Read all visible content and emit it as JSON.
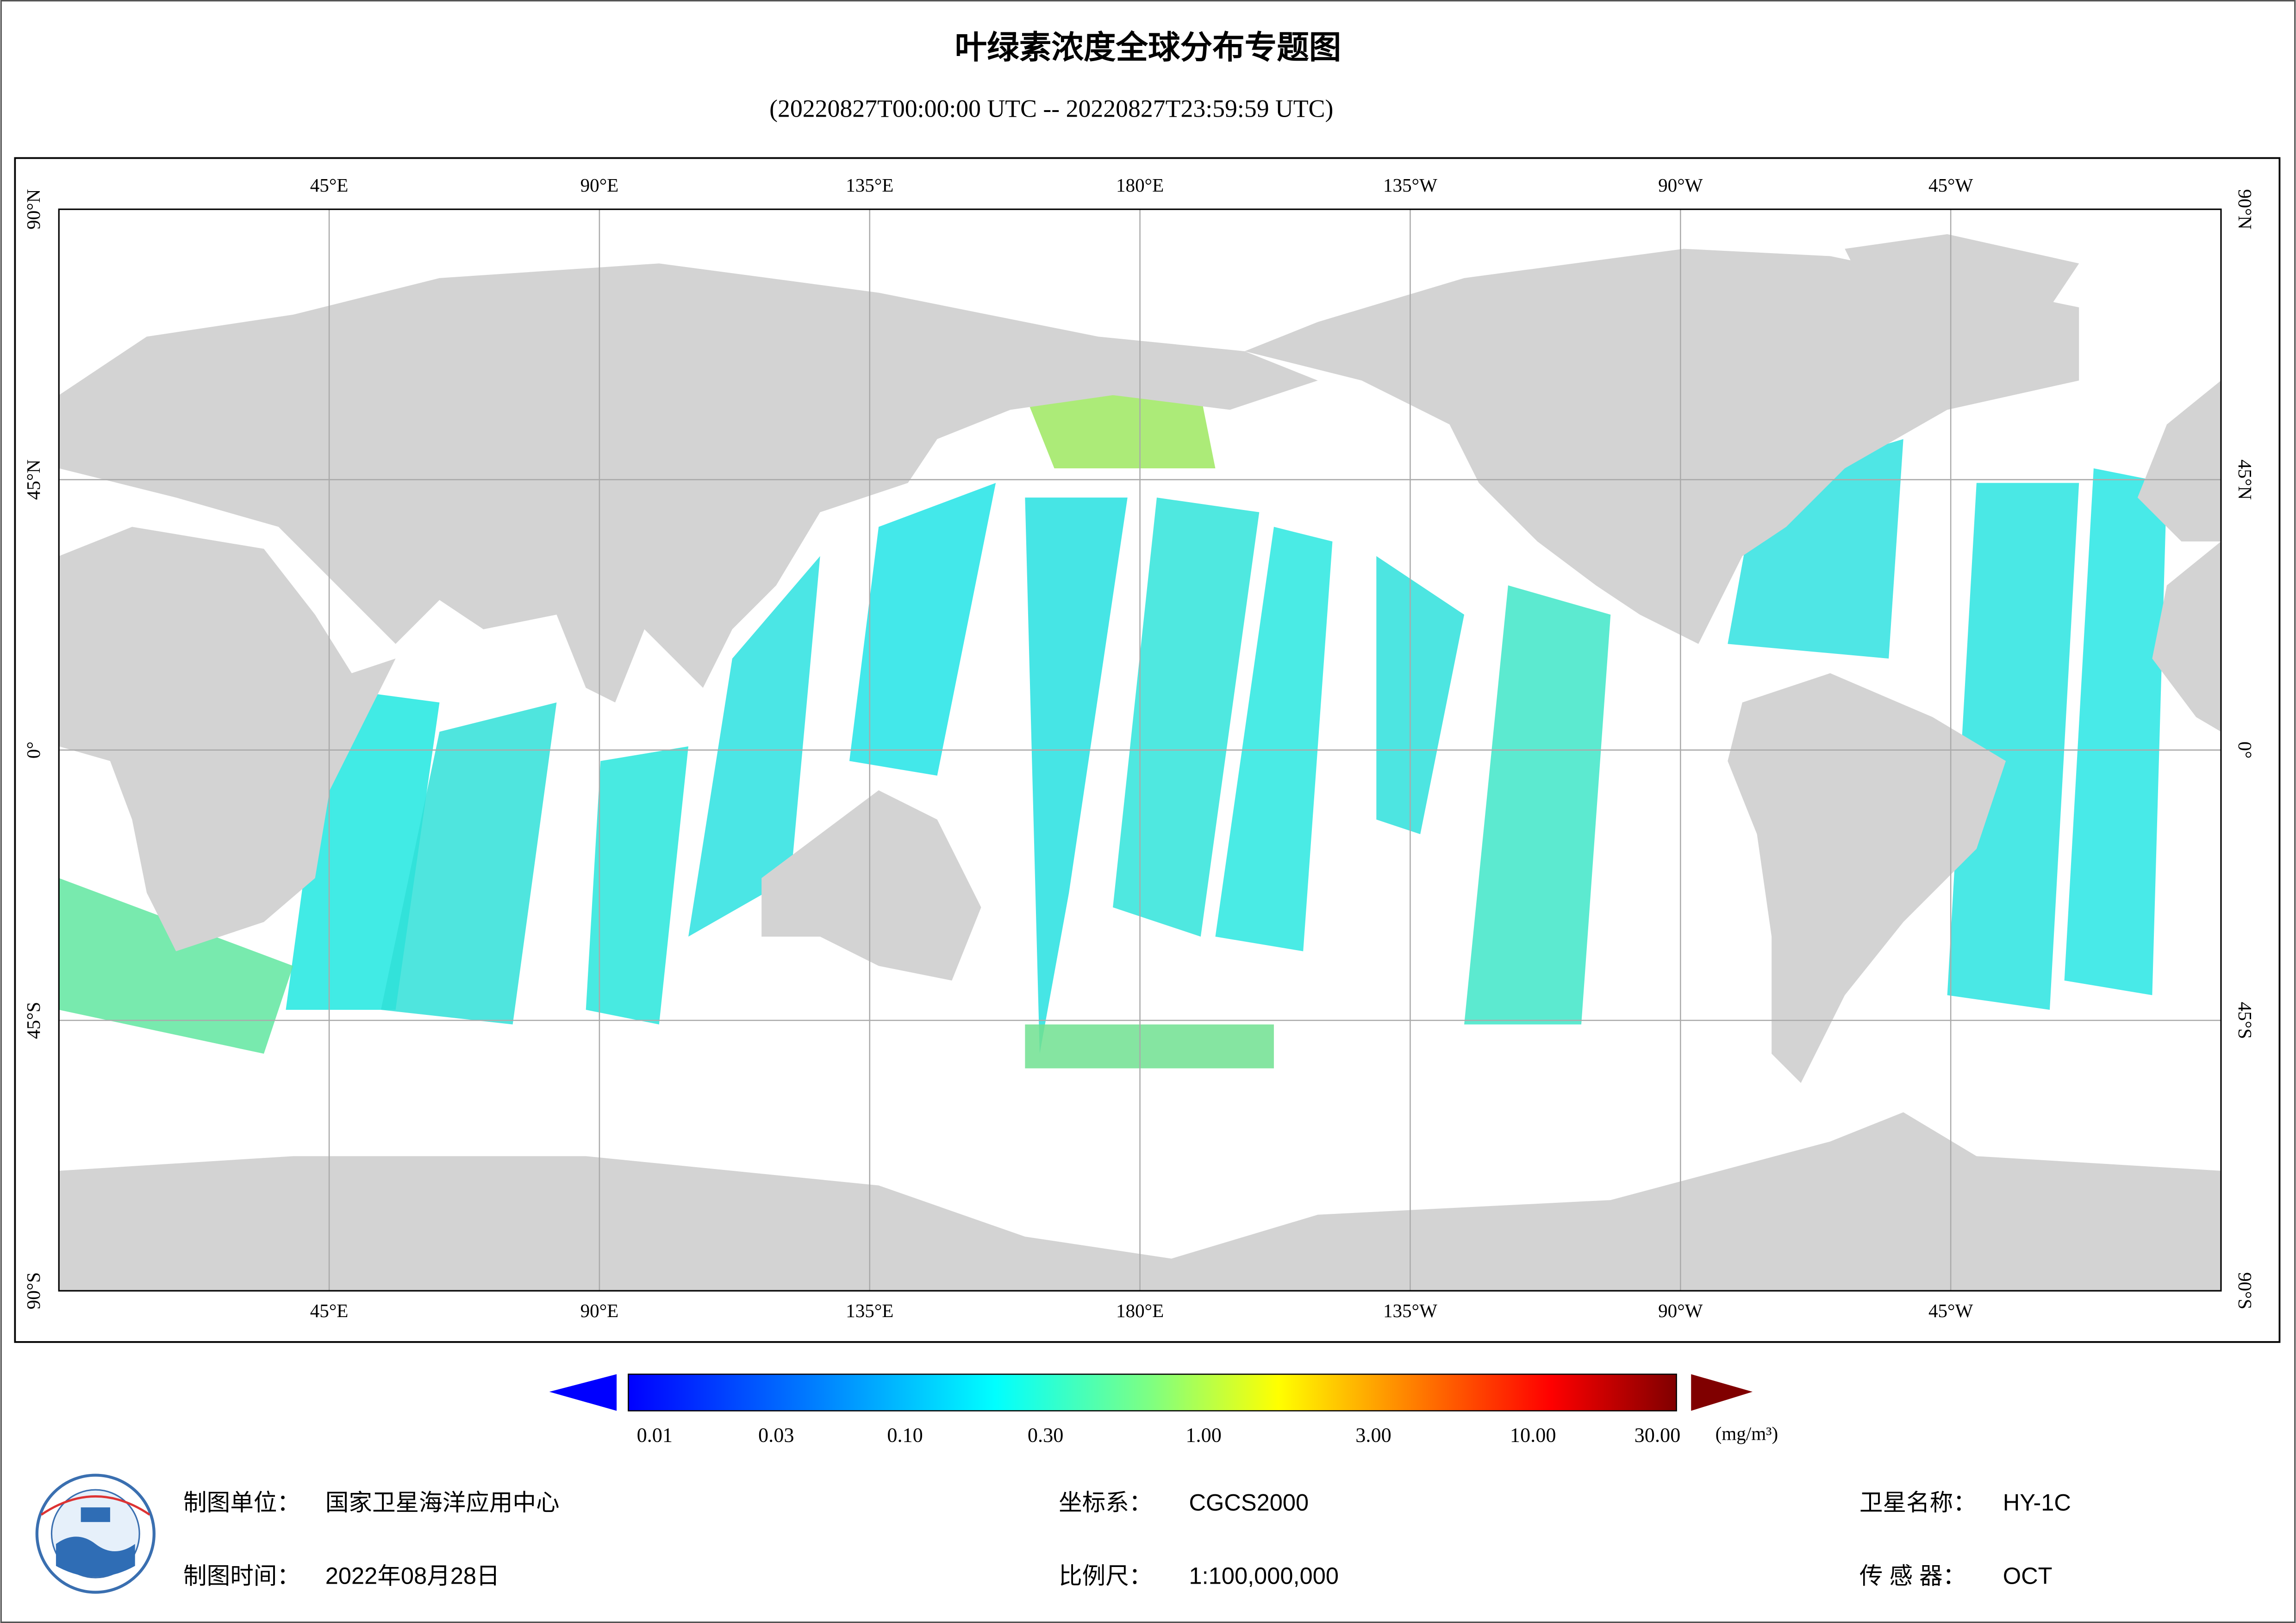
{
  "title": "叶绿素浓度全球分布专题图",
  "subtitle": "(20220827T00:00:00 UTC -- 20220827T23:59:59 UTC)",
  "map": {
    "longitude_labels": [
      "45°E",
      "90°E",
      "135°E",
      "180°E",
      "135°W",
      "90°W",
      "45°W"
    ],
    "latitude_labels": [
      "90°N",
      "45°N",
      "0°",
      "45°S",
      "90°S"
    ]
  },
  "colorbar": {
    "ticks": [
      "0.01",
      "0.03",
      "0.10",
      "0.30",
      "1.00",
      "3.00",
      "10.00",
      "30.00"
    ],
    "unit": "(mg/m³)"
  },
  "footer": {
    "unit_label": "制图单位：",
    "unit_value": "国家卫星海洋应用中心",
    "date_label": "制图时间：",
    "date_value": "2022年08月28日",
    "crs_label": "坐标系：",
    "crs_value": "CGCS2000",
    "scale_label": "比例尺：",
    "scale_value": "1:100,000,000",
    "satellite_label": "卫星名称：",
    "satellite_value": "HY-1C",
    "sensor_label": "传 感 器：",
    "sensor_value": "OCT"
  }
}
